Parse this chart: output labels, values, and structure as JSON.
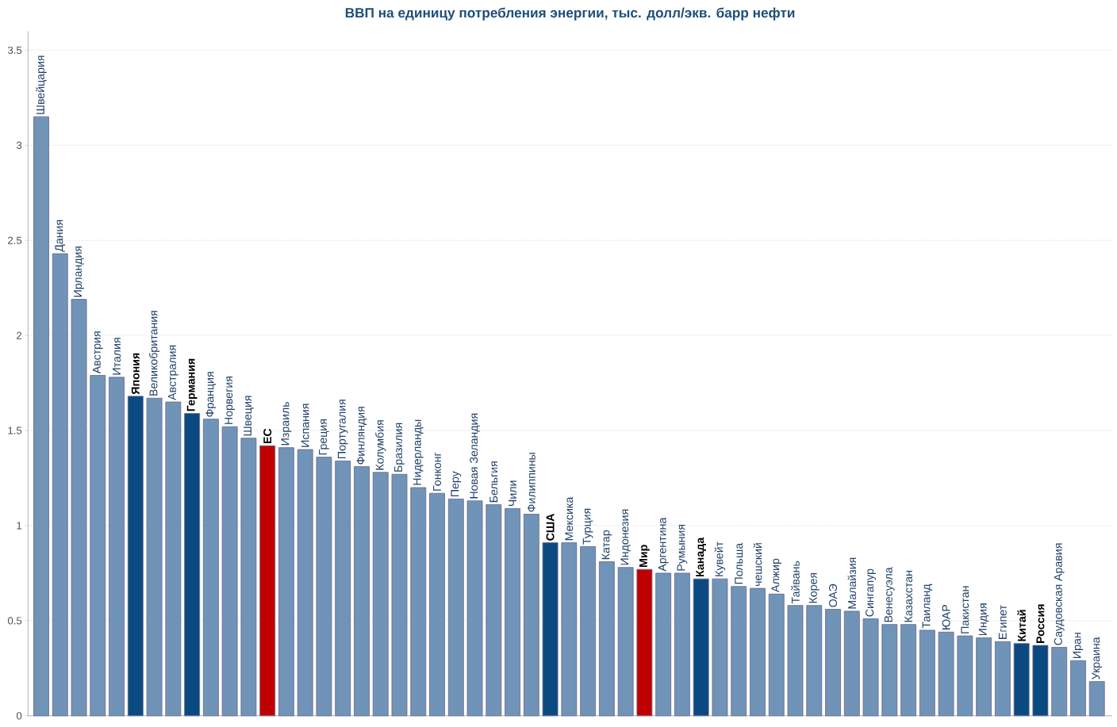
{
  "chart_data": {
    "type": "bar",
    "title": "ВВП на единицу потребления энергии, тыс. долл/экв. барр нефти",
    "categories": [
      "Швейцария",
      "Дания",
      "Ирландия",
      "Австрия",
      "Италия",
      "Япония",
      "Великобритания",
      "Австралия",
      "Германия",
      "Франция",
      "Норвегия",
      "Швеция",
      "ЕС",
      "Израиль",
      "Испания",
      "Греция",
      "Португалия",
      "Финляндия",
      "Колумбия",
      "Бразилия",
      "Нидерланды",
      "Гонконг",
      "Перу",
      "Новая Зеландия",
      "Бельгия",
      "Чили",
      "Филиппины",
      "США",
      "Мексика",
      "Турция",
      "Катар",
      "Индонезия",
      "Мир",
      "Аргентина",
      "Румыния",
      "Канада",
      "Кувейт",
      "Польша",
      "чешский",
      "Алжир",
      "Тайвань",
      "Корея",
      "ОАЭ",
      "Малайзия",
      "Сингапур",
      "Венесуэла",
      "Казахстан",
      "Таиланд",
      "ЮАР",
      "Пакистан",
      "Индия",
      "Египет",
      "Китай",
      "Россия",
      "Саудовская Аравия",
      "Иран",
      "Украина"
    ],
    "values": [
      3.15,
      2.43,
      2.19,
      1.79,
      1.78,
      1.68,
      1.67,
      1.65,
      1.59,
      1.56,
      1.52,
      1.46,
      1.42,
      1.41,
      1.4,
      1.36,
      1.34,
      1.31,
      1.28,
      1.27,
      1.2,
      1.17,
      1.14,
      1.13,
      1.11,
      1.09,
      1.06,
      0.91,
      0.91,
      0.89,
      0.81,
      0.78,
      0.77,
      0.75,
      0.75,
      0.72,
      0.72,
      0.68,
      0.67,
      0.64,
      0.58,
      0.58,
      0.56,
      0.55,
      0.51,
      0.48,
      0.48,
      0.45,
      0.44,
      0.42,
      0.41,
      0.39,
      0.38,
      0.37,
      0.36,
      0.29,
      0.18
    ],
    "color": "#7094b8",
    "colors": [
      "#7094b8",
      "#7094b8",
      "#7094b8",
      "#7094b8",
      "#7094b8",
      "#0b4a80",
      "#7094b8",
      "#7094b8",
      "#0b4a80",
      "#7094b8",
      "#7094b8",
      "#7094b8",
      "#c00000",
      "#7094b8",
      "#7094b8",
      "#7094b8",
      "#7094b8",
      "#7094b8",
      "#7094b8",
      "#7094b8",
      "#7094b8",
      "#7094b8",
      "#7094b8",
      "#7094b8",
      "#7094b8",
      "#7094b8",
      "#7094b8",
      "#0b4a80",
      "#7094b8",
      "#7094b8",
      "#7094b8",
      "#7094b8",
      "#c00000",
      "#7094b8",
      "#7094b8",
      "#0b4a80",
      "#7094b8",
      "#7094b8",
      "#7094b8",
      "#7094b8",
      "#7094b8",
      "#7094b8",
      "#7094b8",
      "#7094b8",
      "#7094b8",
      "#7094b8",
      "#7094b8",
      "#7094b8",
      "#7094b8",
      "#7094b8",
      "#7094b8",
      "#7094b8",
      "#0b4a80",
      "#0b4a80",
      "#7094b8",
      "#7094b8",
      "#7094b8"
    ],
    "ylim": [
      0,
      3.6
    ],
    "yticks": [
      0,
      0.5,
      1,
      1.5,
      2,
      2.5,
      3,
      3.5
    ],
    "grid": "y"
  }
}
